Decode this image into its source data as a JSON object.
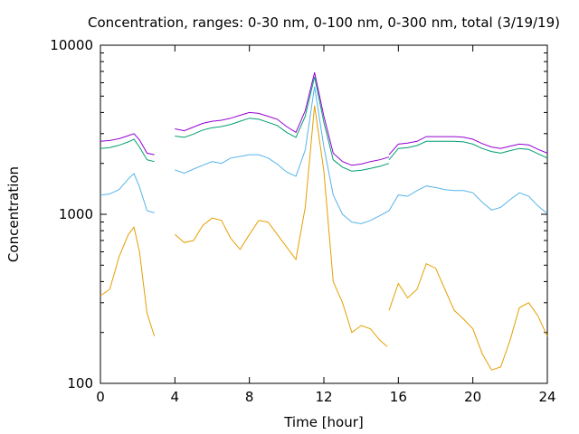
{
  "chart_data": {
    "type": "line",
    "title": "Concentration, ranges: 0-30 nm, 0-100 nm, 0-300 nm, total (3/19/19)",
    "xlabel": "Time [hour]",
    "ylabel": "Concentration",
    "xlim": [
      0,
      24
    ],
    "ylim": [
      100,
      10000
    ],
    "yscale": "log",
    "grid": false,
    "legend": "none",
    "x_ticks": [
      0,
      4,
      8,
      12,
      16,
      20,
      24
    ],
    "x_tick_labels": [
      "0",
      "4",
      "8",
      "12",
      "16",
      "20",
      "24"
    ],
    "y_ticks": [
      100,
      1000,
      10000
    ],
    "y_tick_labels": [
      "100",
      "1000",
      "10000"
    ],
    "series": [
      {
        "color": "#e69f00",
        "segments": [
          [
            [
              0,
              330
            ],
            [
              0.5,
              360
            ],
            [
              1,
              560
            ],
            [
              1.5,
              760
            ],
            [
              1.8,
              840
            ],
            [
              2.1,
              600
            ],
            [
              2.5,
              260
            ],
            [
              2.9,
              190
            ]
          ],
          [
            [
              4,
              760
            ],
            [
              4.5,
              680
            ],
            [
              5,
              700
            ],
            [
              5.5,
              860
            ],
            [
              6,
              950
            ],
            [
              6.5,
              920
            ],
            [
              7,
              720
            ],
            [
              7.5,
              620
            ],
            [
              8,
              760
            ],
            [
              8.5,
              920
            ],
            [
              9,
              900
            ],
            [
              9.5,
              760
            ],
            [
              10,
              640
            ],
            [
              10.5,
              540
            ],
            [
              11,
              1100
            ],
            [
              11.5,
              4400
            ],
            [
              12,
              1800
            ],
            [
              12.5,
              400
            ],
            [
              13,
              300
            ],
            [
              13.5,
              200
            ],
            [
              14,
              220
            ],
            [
              14.5,
              210
            ],
            [
              15,
              180
            ],
            [
              15.4,
              165
            ]
          ],
          [
            [
              15.5,
              270
            ],
            [
              16,
              390
            ],
            [
              16.5,
              320
            ],
            [
              17,
              360
            ],
            [
              17.5,
              510
            ],
            [
              18,
              480
            ],
            [
              18.5,
              360
            ],
            [
              19,
              270
            ],
            [
              19.5,
              240
            ],
            [
              20,
              210
            ],
            [
              20.5,
              150
            ],
            [
              21,
              120
            ],
            [
              21.5,
              125
            ],
            [
              22,
              180
            ],
            [
              22.5,
              280
            ],
            [
              23,
              300
            ],
            [
              23.5,
              250
            ],
            [
              24,
              190
            ]
          ]
        ]
      },
      {
        "color": "#56b4e9",
        "segments": [
          [
            [
              0,
              1300
            ],
            [
              0.5,
              1320
            ],
            [
              1,
              1400
            ],
            [
              1.5,
              1620
            ],
            [
              1.8,
              1740
            ],
            [
              2.1,
              1450
            ],
            [
              2.5,
              1050
            ],
            [
              2.9,
              1020
            ]
          ],
          [
            [
              4,
              1830
            ],
            [
              4.5,
              1750
            ],
            [
              5,
              1850
            ],
            [
              5.5,
              1950
            ],
            [
              6,
              2050
            ],
            [
              6.5,
              2000
            ],
            [
              7,
              2150
            ],
            [
              7.5,
              2200
            ],
            [
              8,
              2250
            ],
            [
              8.5,
              2250
            ],
            [
              9,
              2150
            ],
            [
              9.5,
              1980
            ],
            [
              10,
              1780
            ],
            [
              10.5,
              1680
            ],
            [
              11,
              2400
            ],
            [
              11.5,
              5700
            ],
            [
              12,
              2500
            ],
            [
              12.5,
              1300
            ],
            [
              13,
              1000
            ],
            [
              13.5,
              900
            ],
            [
              14,
              880
            ],
            [
              14.5,
              920
            ],
            [
              15,
              980
            ],
            [
              15.5,
              1050
            ]
          ],
          [
            [
              15.5,
              1050
            ],
            [
              16,
              1300
            ],
            [
              16.5,
              1280
            ],
            [
              17,
              1380
            ],
            [
              17.5,
              1470
            ],
            [
              18,
              1440
            ],
            [
              18.5,
              1400
            ],
            [
              19,
              1380
            ],
            [
              19.5,
              1380
            ],
            [
              20,
              1340
            ],
            [
              20.5,
              1180
            ],
            [
              21,
              1060
            ],
            [
              21.5,
              1100
            ],
            [
              22,
              1220
            ],
            [
              22.5,
              1340
            ],
            [
              23,
              1280
            ],
            [
              23.5,
              1120
            ],
            [
              24,
              1010
            ]
          ]
        ]
      },
      {
        "color": "#009e73",
        "segments": [
          [
            [
              0,
              2450
            ],
            [
              0.5,
              2480
            ],
            [
              1,
              2560
            ],
            [
              1.5,
              2680
            ],
            [
              1.8,
              2780
            ],
            [
              2.1,
              2500
            ],
            [
              2.5,
              2100
            ],
            [
              2.9,
              2050
            ]
          ],
          [
            [
              4,
              2900
            ],
            [
              4.5,
              2850
            ],
            [
              5,
              2980
            ],
            [
              5.5,
              3150
            ],
            [
              6,
              3250
            ],
            [
              6.5,
              3300
            ],
            [
              7,
              3400
            ],
            [
              7.5,
              3550
            ],
            [
              8,
              3700
            ],
            [
              8.5,
              3650
            ],
            [
              9,
              3500
            ],
            [
              9.5,
              3350
            ],
            [
              10,
              3050
            ],
            [
              10.5,
              2850
            ],
            [
              11,
              3800
            ],
            [
              11.5,
              6500
            ],
            [
              12,
              3500
            ],
            [
              12.5,
              2100
            ],
            [
              13,
              1900
            ],
            [
              13.5,
              1800
            ],
            [
              14,
              1820
            ],
            [
              14.5,
              1870
            ],
            [
              15,
              1920
            ],
            [
              15.5,
              2000
            ]
          ],
          [
            [
              15.5,
              2100
            ],
            [
              16,
              2450
            ],
            [
              16.5,
              2480
            ],
            [
              17,
              2550
            ],
            [
              17.5,
              2700
            ],
            [
              18,
              2700
            ],
            [
              18.5,
              2700
            ],
            [
              19,
              2700
            ],
            [
              19.5,
              2680
            ],
            [
              20,
              2600
            ],
            [
              20.5,
              2450
            ],
            [
              21,
              2350
            ],
            [
              21.5,
              2300
            ],
            [
              22,
              2380
            ],
            [
              22.5,
              2450
            ],
            [
              23,
              2420
            ],
            [
              23.5,
              2280
            ],
            [
              24,
              2150
            ]
          ]
        ]
      },
      {
        "color": "#9400d3",
        "segments": [
          [
            [
              0,
              2700
            ],
            [
              0.5,
              2730
            ],
            [
              1,
              2800
            ],
            [
              1.5,
              2920
            ],
            [
              1.8,
              3000
            ],
            [
              2.1,
              2750
            ],
            [
              2.5,
              2300
            ],
            [
              2.9,
              2250
            ]
          ],
          [
            [
              4,
              3200
            ],
            [
              4.5,
              3120
            ],
            [
              5,
              3280
            ],
            [
              5.5,
              3450
            ],
            [
              6,
              3550
            ],
            [
              6.5,
              3600
            ],
            [
              7,
              3700
            ],
            [
              7.5,
              3850
            ],
            [
              8,
              4000
            ],
            [
              8.5,
              3950
            ],
            [
              9,
              3800
            ],
            [
              9.5,
              3650
            ],
            [
              10,
              3300
            ],
            [
              10.5,
              3050
            ],
            [
              11,
              4100
            ],
            [
              11.5,
              6900
            ],
            [
              12,
              3800
            ],
            [
              12.5,
              2300
            ],
            [
              13,
              2050
            ],
            [
              13.5,
              1950
            ],
            [
              14,
              1980
            ],
            [
              14.5,
              2050
            ],
            [
              15,
              2100
            ],
            [
              15.5,
              2180
            ]
          ],
          [
            [
              15.5,
              2250
            ],
            [
              16,
              2600
            ],
            [
              16.5,
              2640
            ],
            [
              17,
              2700
            ],
            [
              17.5,
              2880
            ],
            [
              18,
              2880
            ],
            [
              18.5,
              2880
            ],
            [
              19,
              2880
            ],
            [
              19.5,
              2860
            ],
            [
              20,
              2780
            ],
            [
              20.5,
              2620
            ],
            [
              21,
              2500
            ],
            [
              21.5,
              2450
            ],
            [
              22,
              2530
            ],
            [
              22.5,
              2600
            ],
            [
              23,
              2570
            ],
            [
              23.5,
              2420
            ],
            [
              24,
              2300
            ]
          ]
        ]
      }
    ]
  }
}
